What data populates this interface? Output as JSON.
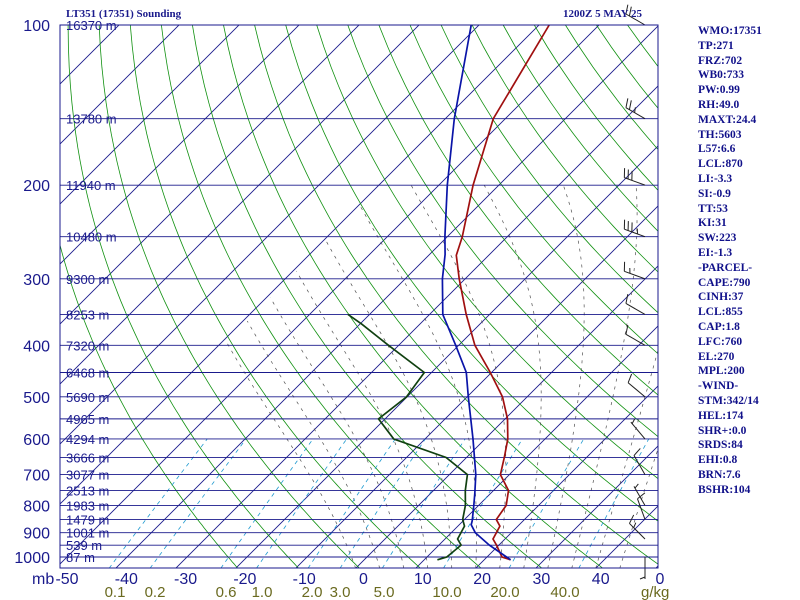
{
  "header": {
    "title": "LT351 (17351) Sounding",
    "timestamp": "1200Z  5 MAY 25"
  },
  "indices": [
    "WMO:17351",
    "TP:271",
    "FRZ:702",
    "WB0:733",
    "PW:0.99",
    "RH:49.0",
    "MAXT:24.4",
    "TH:5603",
    "L57:6.6",
    "LCL:870",
    "LI:-3.3",
    "SI:-0.9",
    "TT:53",
    "KI:31",
    "SW:223",
    "EI:-1.3",
    "-PARCEL-",
    "CAPE:790",
    "CINH:37",
    "LCL:855",
    "CAP:1.8",
    "LFC:760",
    "EL:270",
    "MPL:200",
    "-WIND-",
    "STM:342/14",
    "HEL:174",
    "SHR+:0.0",
    "SRDS:84",
    "EHI:0.8",
    "BRN:7.6",
    "BSHR:104"
  ],
  "colors": {
    "border": "#1a1a8c",
    "isobar": "#1a1a8c",
    "isotherm": "#1a1a8c",
    "dry_adiabat": "#109010",
    "moist_adiabat": "#505050",
    "mixing_ratio": "#1f9ad0",
    "temperature": "#a01010",
    "dewpoint": "#104010",
    "parcel": "#0a14a8",
    "temp_labels": "#1a1a8c",
    "mr_labels": "#6a6a20",
    "wind": "#202020"
  },
  "chart_data": {
    "type": "line",
    "title": "",
    "xlabel": "",
    "ylabel": "",
    "x_axis_prefix": "mb",
    "y_axis": "pressure (mb), log scale, inverted",
    "xlim": [
      -50,
      0
    ],
    "ylim": [
      1050,
      100
    ],
    "pressure_ticks": [
      "100",
      "200",
      "300",
      "400",
      "500",
      "600",
      "700",
      "800",
      "900",
      "1000"
    ],
    "temperature_ticks": [
      "-50",
      "-40",
      "-30",
      "-20",
      "-10",
      "0",
      "10",
      "20",
      "30",
      "40",
      "0"
    ],
    "mixing_ratio_labels": [
      "0.1",
      "0.2",
      "0.6",
      "1.0",
      "2.0",
      "3.0",
      "5.0",
      "10.0",
      "20.0",
      "40.0"
    ],
    "mixing_ratio_unit": "g/kg",
    "heights": [
      {
        "p": 150,
        "label": "13780 m"
      },
      {
        "p": 200,
        "label": "11940 m"
      },
      {
        "p": 250,
        "label": "10480 m"
      },
      {
        "p": 300,
        "label": "9300 m"
      },
      {
        "p": 350,
        "label": "8253 m"
      },
      {
        "p": 400,
        "label": "7320 m"
      },
      {
        "p": 450,
        "label": "6468 m"
      },
      {
        "p": 500,
        "label": "5690 m"
      },
      {
        "p": 550,
        "label": "4965 m"
      },
      {
        "p": 600,
        "label": "4294 m"
      },
      {
        "p": 650,
        "label": "3666 m"
      },
      {
        "p": 700,
        "label": "3077 m"
      },
      {
        "p": 750,
        "label": "2513 m"
      },
      {
        "p": 800,
        "label": "1983 m"
      },
      {
        "p": 850,
        "label": "1479 m"
      },
      {
        "p": 900,
        "label": "1001 m"
      },
      {
        "p": 950,
        "label": "539 m"
      },
      {
        "p": 1000,
        "label": "87 m"
      }
    ],
    "top_height_label": "16370 m",
    "series": [
      {
        "key": "temperature",
        "values": [
          {
            "p": 1012,
            "t": 24.4
          },
          {
            "p": 1000,
            "t": 22.5
          },
          {
            "p": 950,
            "t": 19.6
          },
          {
            "p": 925,
            "t": 18
          },
          {
            "p": 875,
            "t": 17
          },
          {
            "p": 850,
            "t": 15.3
          },
          {
            "p": 800,
            "t": 14.6
          },
          {
            "p": 750,
            "t": 12.5
          },
          {
            "p": 700,
            "t": 8.5
          },
          {
            "p": 650,
            "t": 6.3
          },
          {
            "p": 600,
            "t": 3.8
          },
          {
            "p": 550,
            "t": 0.4
          },
          {
            "p": 500,
            "t": -4.1
          },
          {
            "p": 450,
            "t": -10.2
          },
          {
            "p": 400,
            "t": -17.3
          },
          {
            "p": 350,
            "t": -23.9
          },
          {
            "p": 300,
            "t": -31
          },
          {
            "p": 271,
            "t": -35.4
          },
          {
            "p": 250,
            "t": -37.5
          },
          {
            "p": 200,
            "t": -44.3
          },
          {
            "p": 150,
            "t": -52
          },
          {
            "p": 100,
            "t": -58.3
          }
        ]
      },
      {
        "key": "dewpoint",
        "values": [
          {
            "p": 1012,
            "t": 12.2
          },
          {
            "p": 1000,
            "t": 13.3
          },
          {
            "p": 950,
            "t": 13.7
          },
          {
            "p": 925,
            "t": 12.1
          },
          {
            "p": 875,
            "t": 11.1
          },
          {
            "p": 850,
            "t": 9.7
          },
          {
            "p": 800,
            "t": 7.8
          },
          {
            "p": 750,
            "t": 5.3
          },
          {
            "p": 700,
            "t": 3
          },
          {
            "p": 650,
            "t": -3.4
          },
          {
            "p": 600,
            "t": -15.2
          },
          {
            "p": 550,
            "t": -21.1
          },
          {
            "p": 500,
            "t": -20.1
          },
          {
            "p": 450,
            "t": -21.2
          },
          {
            "p": 400,
            "t": -31.7
          },
          {
            "p": 365,
            "t": -39.7
          },
          {
            "p": 350,
            "t": -43.6
          }
        ]
      },
      {
        "key": "parcel",
        "values": [
          {
            "p": 1012,
            "t": 24.4
          },
          {
            "p": 950,
            "t": 18.4
          },
          {
            "p": 900,
            "t": 14
          },
          {
            "p": 870,
            "t": 12
          },
          {
            "p": 855,
            "t": 11.5
          },
          {
            "p": 800,
            "t": 9.2
          },
          {
            "p": 760,
            "t": 7.4
          },
          {
            "p": 700,
            "t": 4.4
          },
          {
            "p": 600,
            "t": -2
          },
          {
            "p": 500,
            "t": -9.8
          },
          {
            "p": 450,
            "t": -14.2
          },
          {
            "p": 400,
            "t": -20.5
          },
          {
            "p": 350,
            "t": -27.8
          },
          {
            "p": 300,
            "t": -33.8
          },
          {
            "p": 270,
            "t": -37.4
          },
          {
            "p": 250,
            "t": -40.4
          },
          {
            "p": 200,
            "t": -48.6
          },
          {
            "p": 150,
            "t": -58.5
          },
          {
            "p": 100,
            "t": -71.3
          }
        ]
      }
    ],
    "wind_barbs": [
      {
        "p": 1000,
        "dir": 180,
        "spd": 5
      },
      {
        "p": 925,
        "dir": 315,
        "spd": 15
      },
      {
        "p": 850,
        "dir": 340,
        "spd": 10
      },
      {
        "p": 800,
        "dir": 330,
        "spd": 5
      },
      {
        "p": 700,
        "dir": 330,
        "spd": 10
      },
      {
        "p": 600,
        "dir": 320,
        "spd": 5
      },
      {
        "p": 500,
        "dir": 310,
        "spd": 10
      },
      {
        "p": 400,
        "dir": 300,
        "spd": 10
      },
      {
        "p": 350,
        "dir": 300,
        "spd": 10
      },
      {
        "p": 300,
        "dir": 290,
        "spd": 15
      },
      {
        "p": 250,
        "dir": 290,
        "spd": 35
      },
      {
        "p": 200,
        "dir": 290,
        "spd": 30
      },
      {
        "p": 150,
        "dir": 300,
        "spd": 25
      },
      {
        "p": 100,
        "dir": 300,
        "spd": 20
      }
    ]
  }
}
